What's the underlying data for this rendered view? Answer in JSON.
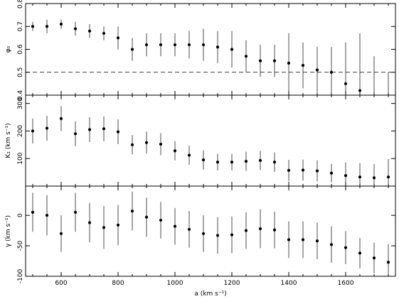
{
  "chart_data": {
    "type": "scatter",
    "x": [
      500,
      550,
      600,
      650,
      700,
      750,
      800,
      850,
      900,
      950,
      1000,
      1050,
      1100,
      1150,
      1200,
      1250,
      1300,
      1350,
      1400,
      1450,
      1500,
      1550,
      1600,
      1650,
      1700,
      1750
    ],
    "xlabel": "a (km s⁻¹)",
    "xlim": [
      475,
      1775
    ],
    "xticks": [
      600,
      800,
      1000,
      1200,
      1400,
      1600
    ],
    "panels": [
      {
        "ylabel": "φ₀",
        "ylim": [
          0.4,
          0.8
        ],
        "yticks": [
          0.4,
          0.5,
          0.6,
          0.7,
          0.8
        ],
        "y": [
          0.7,
          0.7,
          0.71,
          0.69,
          0.68,
          0.67,
          0.65,
          0.6,
          0.62,
          0.62,
          0.62,
          0.62,
          0.62,
          0.61,
          0.6,
          0.57,
          0.55,
          0.55,
          0.54,
          0.53,
          0.51,
          0.5,
          0.45,
          0.42,
          null,
          null
        ],
        "yerr": [
          0.02,
          0.03,
          0.02,
          0.03,
          0.03,
          0.03,
          0.05,
          0.05,
          0.05,
          0.05,
          0.05,
          0.06,
          0.07,
          0.07,
          0.08,
          0.07,
          0.07,
          0.07,
          0.13,
          0.1,
          0.1,
          0.11,
          0.18,
          0.25,
          null,
          null
        ],
        "extra_bars": [
          {
            "x": 1700,
            "lo": 0.4,
            "hi": 0.57
          },
          {
            "x": 1750,
            "lo": 0.4,
            "hi": 0.5
          }
        ],
        "reference_line": 0.5
      },
      {
        "ylabel": "K₁ (km s⁻¹)",
        "ylim": [
          0,
          330
        ],
        "yticks": [
          100,
          200,
          300
        ],
        "y": [
          200,
          210,
          245,
          190,
          205,
          208,
          197,
          150,
          158,
          152,
          128,
          112,
          95,
          87,
          87,
          90,
          93,
          87,
          57,
          58,
          55,
          47,
          38,
          33,
          30,
          33
        ],
        "yerr": [
          45,
          45,
          45,
          45,
          45,
          45,
          45,
          35,
          40,
          40,
          35,
          35,
          35,
          30,
          30,
          35,
          35,
          35,
          38,
          38,
          38,
          33,
          48,
          50,
          50,
          65
        ]
      },
      {
        "ylabel": "γ (km s⁻¹)",
        "ylim": [
          -100,
          48
        ],
        "yticks": [
          -100,
          -50,
          0
        ],
        "y": [
          5,
          0,
          -30,
          5,
          -12,
          -20,
          -16,
          7,
          -3,
          -8,
          -18,
          -23,
          -30,
          -33,
          -32,
          -25,
          -22,
          -24,
          -40,
          -40,
          -42,
          -48,
          -53,
          -62,
          -70,
          -77
        ],
        "yerr": [
          32,
          33,
          30,
          32,
          32,
          35,
          33,
          32,
          32,
          30,
          30,
          30,
          30,
          30,
          30,
          30,
          32,
          30,
          30,
          30,
          30,
          30,
          27,
          25,
          25,
          30
        ]
      }
    ]
  }
}
